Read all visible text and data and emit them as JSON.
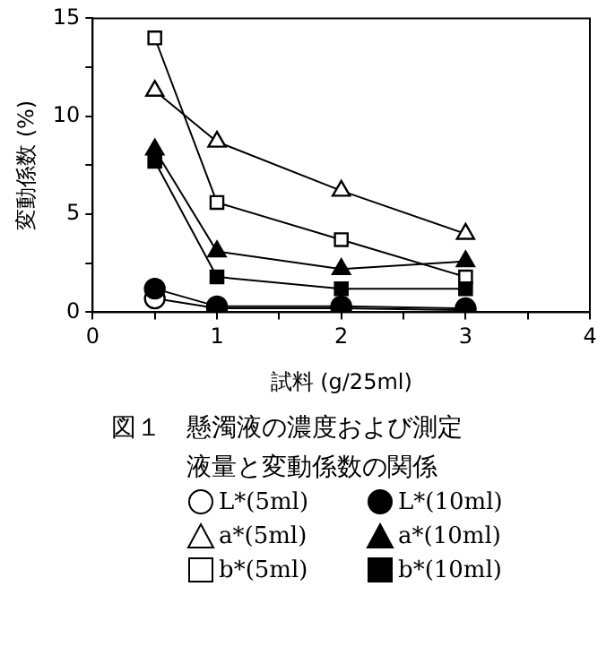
{
  "chart_data": {
    "type": "line",
    "title": "図１　懸濁液の濃度および測定液量と変動係数の関係",
    "xlabel": "試料 (g/25ml)",
    "ylabel": "変動係数 (%)",
    "x": [
      0.5,
      1,
      2,
      3
    ],
    "xlim": [
      0,
      4
    ],
    "xticks": [
      0,
      {
        "value": 0.5,
        "label": null
      },
      1,
      {
        "value": 1.5,
        "label": null
      },
      2,
      {
        "value": 2.5,
        "label": null
      },
      3,
      {
        "value": 3.5,
        "label": null
      },
      4
    ],
    "ylim": [
      0,
      15
    ],
    "yticks": [
      0,
      {
        "value": 2.5,
        "label": null
      },
      5,
      {
        "value": 7.5,
        "label": null
      },
      10,
      {
        "value": 12.5,
        "label": null
      },
      15
    ],
    "grid": false,
    "legend": "bottom",
    "line_style": "solid",
    "series": [
      {
        "name": "L*(5ml)",
        "color": "#ffffff",
        "marker": "circle",
        "values": [
          0.7,
          0.2,
          0.2,
          0.1
        ]
      },
      {
        "name": "L*(10ml)",
        "color": "#000000",
        "marker": "circle",
        "values": [
          1.2,
          0.3,
          0.3,
          0.2
        ]
      },
      {
        "name": "a*(5ml)",
        "color": "#ffffff",
        "marker": "triangle",
        "values": [
          11.3,
          8.7,
          6.2,
          4.0
        ]
      },
      {
        "name": "a*(10ml)",
        "color": "#000000",
        "marker": "triangle",
        "values": [
          8.3,
          3.1,
          2.2,
          2.6
        ]
      },
      {
        "name": "b*(5ml)",
        "color": "#ffffff",
        "marker": "square",
        "values": [
          14.0,
          5.6,
          3.7,
          1.8
        ]
      },
      {
        "name": "b*(10ml)",
        "color": "#000000",
        "marker": "square",
        "values": [
          7.7,
          1.8,
          1.2,
          1.2
        ]
      }
    ]
  }
}
